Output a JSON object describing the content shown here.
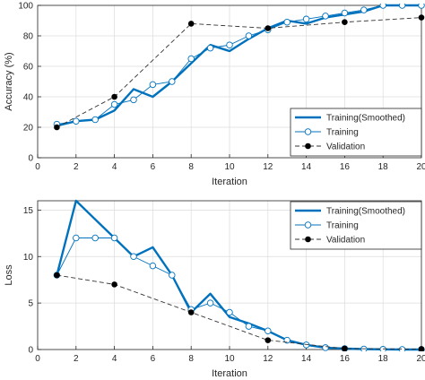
{
  "chart_data": [
    {
      "type": "line",
      "title": "",
      "xlabel": "Iteration",
      "ylabel": "Accuracy (%)",
      "xlim": [
        0,
        20
      ],
      "ylim": [
        0,
        100
      ],
      "xticks": [
        0,
        2,
        4,
        6,
        8,
        10,
        12,
        14,
        16,
        18,
        20
      ],
      "yticks": [
        0,
        20,
        40,
        60,
        80,
        100
      ],
      "grid": true,
      "legend_position": "bottom-right",
      "series": [
        {
          "name": "Training(Smoothed)",
          "style": "thick-solid",
          "color": "#0072BD",
          "x": [
            1,
            2,
            3,
            4,
            5,
            6,
            7,
            8,
            9,
            10,
            11,
            12,
            13,
            14,
            15,
            16,
            17,
            18,
            19,
            20
          ],
          "y": [
            21,
            24,
            25,
            31,
            45,
            40,
            50,
            62,
            74,
            70,
            78,
            85,
            90,
            88,
            92,
            94,
            96,
            100,
            100,
            100
          ]
        },
        {
          "name": "Training",
          "style": "thin-solid-open-circle",
          "color": "#0072BD",
          "x": [
            1,
            2,
            3,
            4,
            5,
            6,
            7,
            8,
            9,
            10,
            11,
            12,
            13,
            14,
            15,
            16,
            17,
            18,
            19,
            20
          ],
          "y": [
            22,
            24,
            25,
            35,
            38,
            48,
            50,
            65,
            72,
            74,
            80,
            84,
            89,
            91,
            93,
            95,
            97,
            100,
            100,
            100
          ]
        },
        {
          "name": "Validation",
          "style": "dashed-filled-dot",
          "color": "#000000",
          "x": [
            1,
            4,
            8,
            12,
            16,
            20
          ],
          "y": [
            20,
            40,
            88,
            85,
            89,
            92
          ]
        }
      ]
    },
    {
      "type": "line",
      "title": "",
      "xlabel": "Iteration",
      "ylabel": "Loss",
      "xlim": [
        0,
        20
      ],
      "ylim": [
        0,
        16
      ],
      "xticks": [
        0,
        2,
        4,
        6,
        8,
        10,
        12,
        14,
        16,
        18,
        20
      ],
      "yticks": [
        0,
        5,
        10,
        15
      ],
      "grid": true,
      "legend_position": "top-right",
      "series": [
        {
          "name": "Training(Smoothed)",
          "style": "thick-solid",
          "color": "#0072BD",
          "x": [
            1,
            2,
            3,
            4,
            5,
            6,
            7,
            8,
            9,
            10,
            11,
            12,
            13,
            14,
            15,
            16,
            17,
            18,
            19,
            20
          ],
          "y": [
            8,
            16,
            14,
            12,
            10,
            11,
            8,
            4,
            6,
            3.5,
            2.8,
            2.0,
            1.0,
            0.5,
            0.2,
            0.1,
            0.05,
            0.02,
            0.0,
            0.0
          ]
        },
        {
          "name": "Training",
          "style": "thin-solid-open-circle",
          "color": "#0072BD",
          "x": [
            1,
            2,
            3,
            4,
            5,
            6,
            7,
            8,
            9,
            10,
            11,
            12,
            13,
            14,
            15,
            16,
            17,
            18,
            19,
            20
          ],
          "y": [
            8,
            12,
            12,
            12,
            10,
            9,
            8,
            4.3,
            5,
            4,
            2.5,
            2.0,
            1.0,
            0.5,
            0.2,
            0.1,
            0.05,
            0.02,
            0.0,
            0.0
          ]
        },
        {
          "name": "Validation",
          "style": "dashed-filled-dot",
          "color": "#000000",
          "x": [
            1,
            4,
            8,
            12,
            16,
            20
          ],
          "y": [
            8,
            7,
            4,
            1,
            0.1,
            0.05
          ]
        }
      ]
    }
  ]
}
